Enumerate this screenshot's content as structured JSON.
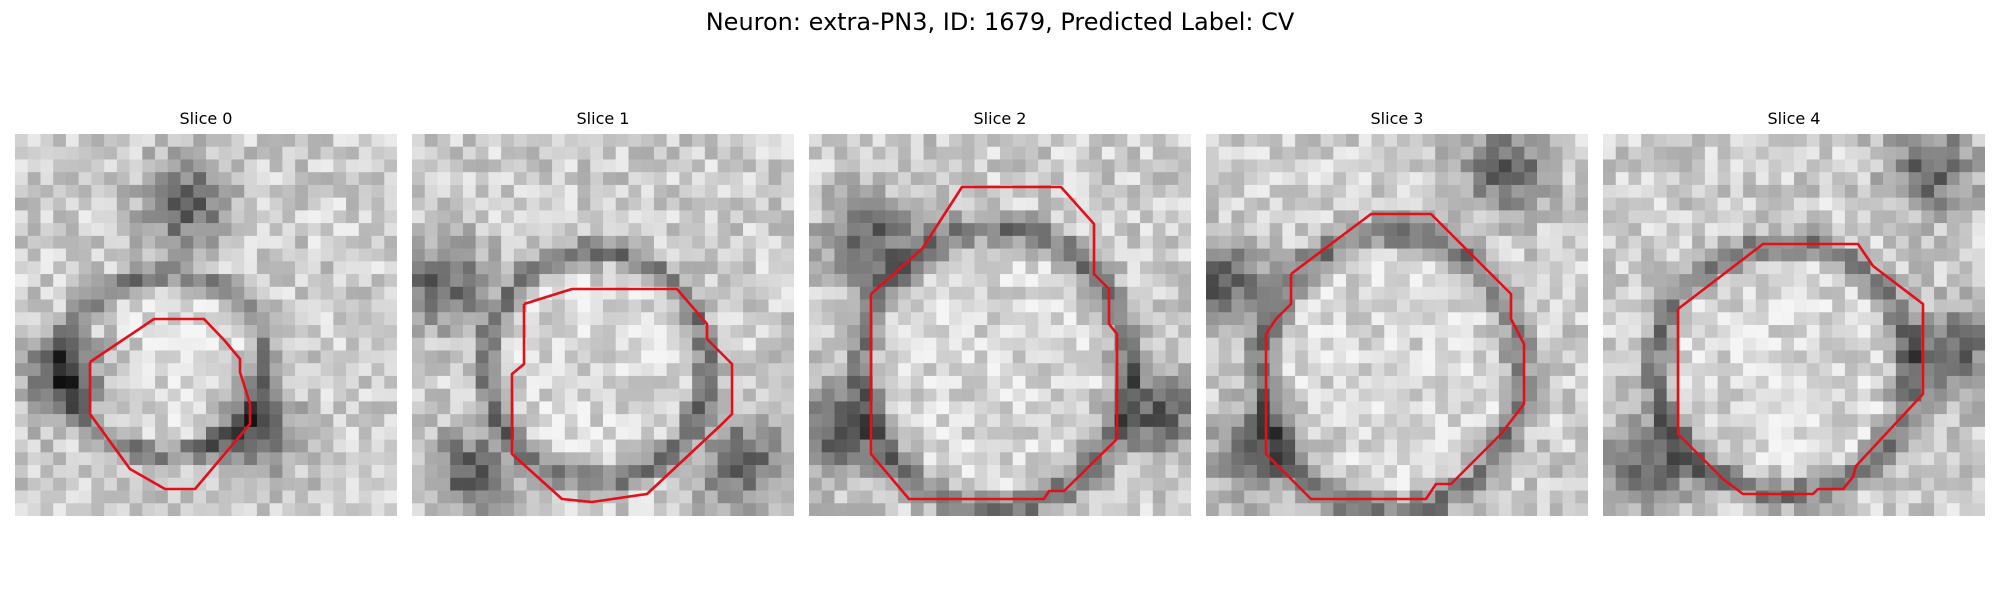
{
  "title": "Neuron: extra-PN3, ID: 1679, Predicted Label: CV",
  "panels": [
    {
      "title": "Slice 0"
    },
    {
      "title": "Slice 1"
    },
    {
      "title": "Slice 2"
    },
    {
      "title": "Slice 3"
    },
    {
      "title": "Slice 4"
    }
  ],
  "contour_color": "#e3101a"
}
